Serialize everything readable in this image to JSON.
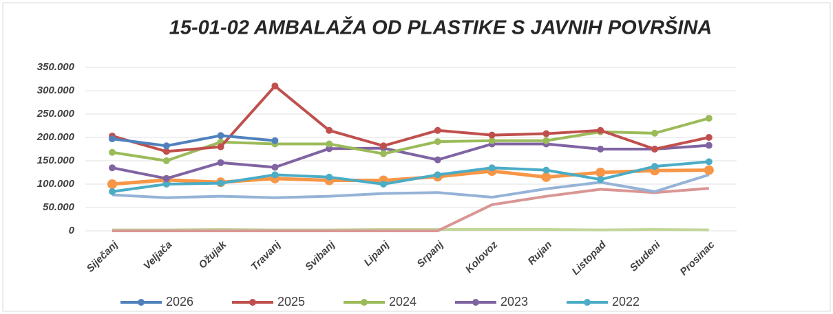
{
  "chart_data": {
    "type": "line",
    "title": "15-01-02 AMBALAŽA OD PLASTIKE  S JAVNIH POVRŠINA",
    "categories": [
      "Siječanj",
      "Veljača",
      "Ožujak",
      "Travanj",
      "Svibanj",
      "Lipanj",
      "Srpanj",
      "Kolovoz",
      "Rujan",
      "Listopad",
      "Studeni",
      "Prosinac"
    ],
    "series": [
      {
        "color": "#c3d69b",
        "values": [
          2000,
          2000,
          3000,
          2000,
          2000,
          3000,
          3000,
          3000,
          3000,
          2000,
          3000,
          2000
        ]
      },
      {
        "color": "#d99694",
        "values": [
          0,
          0,
          0,
          0,
          0,
          0,
          0,
          56000,
          74000,
          89000,
          82000,
          91000
        ]
      },
      {
        "color": "#95b3d7",
        "values": [
          77000,
          71000,
          74000,
          71000,
          74000,
          80000,
          82000,
          72000,
          90000,
          104000,
          84000,
          120000
        ]
      },
      {
        "color": "#f79646",
        "values": [
          100000,
          109000,
          104000,
          112000,
          108000,
          108000,
          116000,
          128000,
          115000,
          125000,
          129000,
          130000
        ]
      },
      {
        "name": "2022",
        "color": "#4bacc6",
        "values": [
          84000,
          100000,
          102000,
          120000,
          115000,
          100000,
          120000,
          135000,
          130000,
          110000,
          138000,
          148000
        ]
      },
      {
        "name": "2023",
        "color": "#8064a2",
        "values": [
          135000,
          112000,
          146000,
          136000,
          176000,
          177000,
          152000,
          186000,
          186000,
          175000,
          175000,
          183000
        ]
      },
      {
        "name": "2024",
        "color": "#9bbb59",
        "values": [
          168000,
          150000,
          190000,
          186000,
          186000,
          165000,
          191000,
          193000,
          193000,
          212000,
          209000,
          241000
        ]
      },
      {
        "name": "2025",
        "color": "#c0504d",
        "values": [
          203000,
          170000,
          180000,
          310000,
          215000,
          182000,
          215000,
          205000,
          208000,
          215000,
          175000,
          200000
        ]
      },
      {
        "name": "2026",
        "color": "#4f81bd",
        "values": [
          197000,
          182000,
          204000,
          193000,
          null,
          null,
          null,
          null,
          null,
          null,
          null,
          null
        ]
      }
    ],
    "ylim": [
      0,
      350000
    ],
    "yticks": [
      0,
      {
        "value": 50000,
        "label": "50.000"
      },
      {
        "value": 100000,
        "label": "100.000"
      },
      {
        "value": 150000,
        "label": "150.000"
      },
      {
        "value": 200000,
        "label": "200.000"
      },
      {
        "value": 250000,
        "label": "250.000"
      },
      {
        "value": 300000,
        "label": "300.000"
      },
      {
        "value": 350000,
        "label": "350.000"
      }
    ],
    "grid": true,
    "legend": "bottom"
  }
}
